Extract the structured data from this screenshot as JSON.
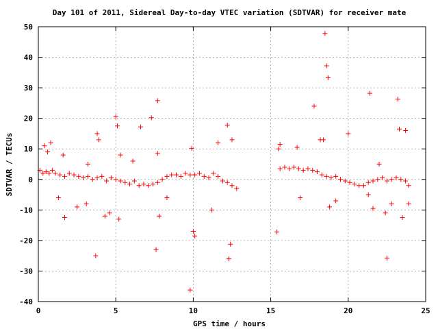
{
  "chart_data": {
    "type": "scatter",
    "title": "Day 101 of 2011, Sidereal Day-to-day VTEC variation (SDTVAR) for receiver mate",
    "xlabel": "GPS time / hours",
    "ylabel": "SDTVAR / TECUs",
    "xlim": [
      0,
      25
    ],
    "ylim": [
      -40,
      50
    ],
    "xticks": [
      "0",
      "5",
      "10",
      "15",
      "20",
      "25"
    ],
    "yticks": [
      "50",
      "40",
      "30",
      "20",
      "10",
      "0",
      "-10",
      "-20",
      "-30",
      "-40"
    ],
    "grid": true,
    "marker": "+",
    "color": "#ff0000",
    "series": [
      {
        "x": [
          0.1,
          0.3,
          0.5,
          0.7,
          0.9,
          1.1,
          1.4,
          1.7,
          2.0,
          2.3,
          2.6,
          2.9,
          3.2,
          3.5,
          3.8,
          4.1,
          4.4,
          4.7,
          5.0,
          5.3,
          5.6,
          5.9,
          6.2,
          6.5,
          6.8,
          7.1,
          7.4,
          7.7,
          8.0,
          8.3,
          8.6,
          8.9,
          9.2,
          9.5,
          9.8,
          10.1,
          10.4,
          10.7,
          11.0,
          11.3,
          11.6,
          11.9,
          12.2,
          12.5,
          12.8,
          15.6,
          15.9,
          16.2,
          16.5,
          16.8,
          17.1,
          17.4,
          17.7,
          18.0,
          18.3,
          18.6,
          18.9,
          19.2,
          19.5,
          19.8,
          20.1,
          20.4,
          20.7,
          21.0,
          21.3,
          21.6,
          21.9,
          22.2,
          22.5,
          22.8,
          23.1,
          23.4,
          23.7,
          23.9,
          0.4,
          0.6,
          0.8,
          1.3,
          1.7,
          2.5,
          3.1,
          3.7,
          3.8,
          3.9,
          4.6,
          5.0,
          5.1,
          5.2,
          5.3,
          6.6,
          7.3,
          7.6,
          7.7,
          7.7,
          7.8,
          9.8,
          9.9,
          10.0,
          10.1,
          11.6,
          12.2,
          12.3,
          12.4,
          12.5,
          15.4,
          15.6,
          16.7,
          16.9,
          17.8,
          18.2,
          18.4,
          18.5,
          18.6,
          18.7,
          18.8,
          20.0,
          21.4,
          21.6,
          22.0,
          22.4,
          22.5,
          23.2,
          23.3,
          23.5,
          23.7,
          23.9,
          1.6,
          3.2,
          4.3,
          6.1,
          8.3,
          11.2,
          15.5,
          19.2,
          21.3,
          22.8
        ],
        "y": [
          3,
          2,
          2.5,
          2,
          3,
          2,
          1.5,
          1,
          2,
          1.5,
          1,
          0.5,
          1,
          0,
          0.5,
          1,
          -0.5,
          0.5,
          0,
          -0.5,
          -1,
          -1.5,
          -0.5,
          -2,
          -1.5,
          -2,
          -1.5,
          -1,
          0,
          1,
          1.5,
          1.5,
          1,
          2,
          1.5,
          1.5,
          2,
          1,
          0.5,
          2,
          1,
          -0.5,
          -1,
          -2,
          -3,
          3.5,
          4,
          3.5,
          4,
          3.5,
          3,
          3.5,
          3,
          2.5,
          1.5,
          1,
          0.5,
          1,
          0,
          -0.5,
          -1,
          -1.5,
          -2,
          -2,
          -1,
          -0.5,
          0,
          0.5,
          -0.5,
          0,
          0.5,
          0,
          -0.5,
          -2,
          11,
          9,
          12,
          -6,
          -12.5,
          -9,
          -8,
          -25,
          15,
          13,
          -11,
          20.5,
          17.5,
          -13,
          8,
          17.2,
          20.2,
          -23,
          25.8,
          8.5,
          -12,
          -36.2,
          10.2,
          -17,
          -18.5,
          12,
          17.8,
          -26,
          -21.2,
          13,
          -17.2,
          11.5,
          10.5,
          -6,
          24,
          13,
          13,
          47.8,
          37.2,
          33.3,
          -9,
          15,
          28.2,
          -9.5,
          5,
          -11,
          -25.8,
          26.3,
          16.5,
          -12.5,
          16,
          -8,
          8,
          5,
          -12,
          6,
          -6,
          -10,
          10,
          -7,
          -5,
          -8
        ]
      }
    ]
  }
}
